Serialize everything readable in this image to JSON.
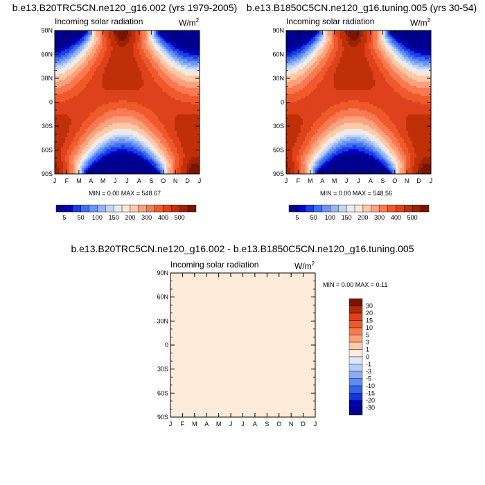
{
  "colors": {
    "palette": [
      "#00008f",
      "#0000c7",
      "#1a3fe0",
      "#3f6ef5",
      "#6b95f5",
      "#98b5f2",
      "#c3d6f2",
      "#e3ecf6",
      "#fde8d6",
      "#fcc8aa",
      "#fba17c",
      "#f97a52",
      "#f05a2b",
      "#dd421c",
      "#c03008",
      "#9e2303",
      "#7a1401"
    ],
    "uniform": "#fdebd9"
  },
  "chart_data": [
    {
      "id": "a",
      "type": "heatmap",
      "title": "b.e13.B20TRC5CN.ne120_g16.002 (yrs 1979-2005)",
      "subtitle": "Incoming solar radiation",
      "units": "W/m",
      "units_sup": "2",
      "min_label": "MIN =   0.00 MAX = 548.67",
      "min": 0.0,
      "max": 548.67,
      "x_ticks": [
        "J",
        "F",
        "M",
        "A",
        "M",
        "J",
        "J",
        "A",
        "S",
        "O",
        "N",
        "D",
        "J"
      ],
      "y_ticks": [
        "90N",
        "60N",
        "30N",
        "0",
        "30S",
        "60S",
        "90S"
      ],
      "colorbar_labels": [
        "5",
        "50",
        "100",
        "150",
        "200",
        "300",
        "400",
        "500"
      ]
    },
    {
      "id": "b",
      "type": "heatmap",
      "title": "b.e13.B1850C5CN.ne120_g16.tuning.005 (yrs 30-54)",
      "subtitle": "Incoming solar radiation",
      "units": "W/m",
      "units_sup": "2",
      "min_label": "MIN =   0.00 MAX = 548.56",
      "min": 0.0,
      "max": 548.56,
      "x_ticks": [
        "J",
        "F",
        "M",
        "A",
        "M",
        "J",
        "J",
        "A",
        "S",
        "O",
        "N",
        "D",
        "J"
      ],
      "y_ticks": [
        "90N",
        "60N",
        "30N",
        "0",
        "30S",
        "60S",
        "90S"
      ],
      "colorbar_labels": [
        "5",
        "50",
        "100",
        "150",
        "200",
        "300",
        "400",
        "500"
      ]
    },
    {
      "id": "c",
      "type": "heatmap",
      "title": "b.e13.B20TRC5CN.ne120_g16.002 - b.e13.B1850C5CN.ne120_g16.tuning.005",
      "subtitle": "Incoming solar radiation",
      "units": "W/m",
      "units_sup": "2",
      "min_label": "MIN =   0.00 MAX =   0.11",
      "min": 0.0,
      "max": 0.11,
      "x_ticks": [
        "J",
        "F",
        "M",
        "A",
        "M",
        "J",
        "J",
        "A",
        "S",
        "O",
        "N",
        "D",
        "J"
      ],
      "y_ticks": [
        "90N",
        "60N",
        "30N",
        "0",
        "30S",
        "60S",
        "90S"
      ],
      "colorbar_labels": [
        "30",
        "20",
        "15",
        "10",
        "5",
        "3",
        "1",
        "0",
        "-1",
        "-3",
        "-5",
        "-10",
        "-15",
        "-20",
        "-30"
      ]
    }
  ]
}
